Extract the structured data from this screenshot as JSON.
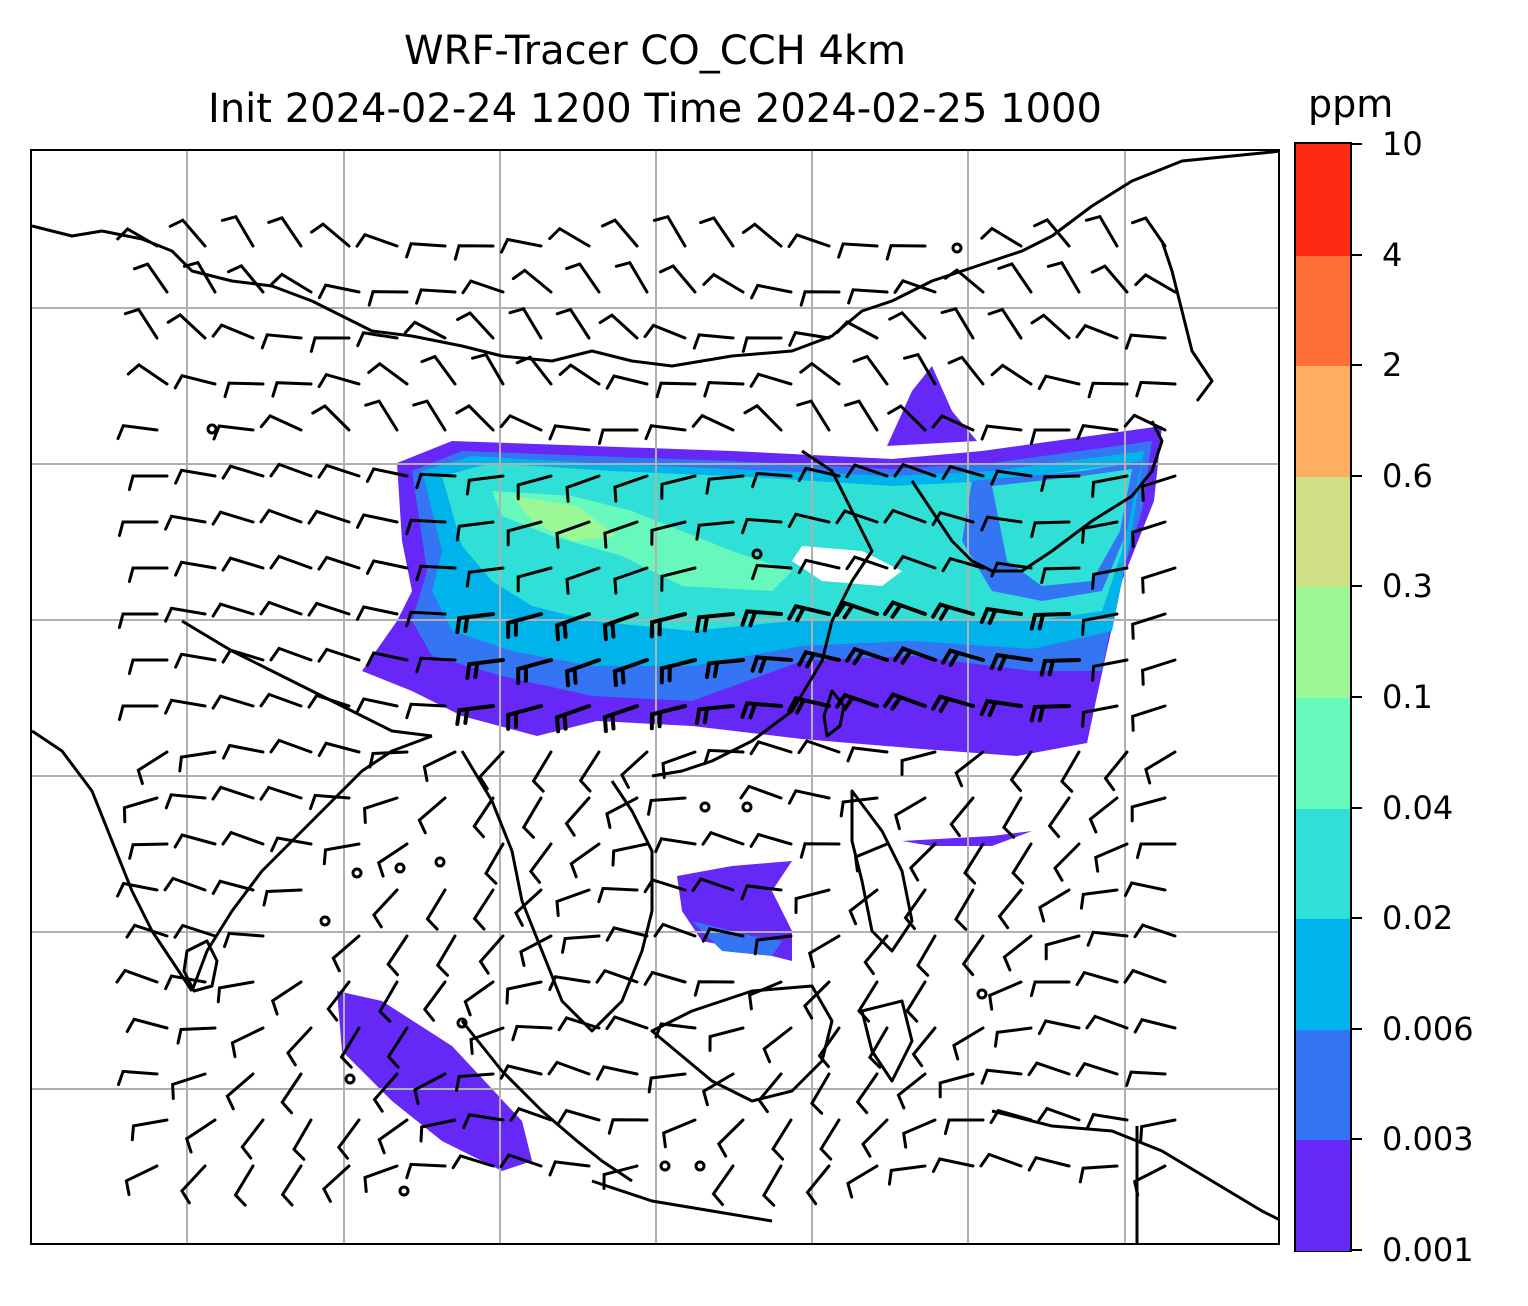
{
  "title": {
    "line1": "WRF-Tracer CO_CCH 4km",
    "line2": "Init 2024-02-24 1200 Time 2024-02-25 1000"
  },
  "colorbar": {
    "unit": "ppm",
    "levels": [
      "0.001",
      "0.003",
      "0.006",
      "0.02",
      "0.04",
      "0.1",
      "0.3",
      "0.6",
      "2",
      "4",
      "10"
    ],
    "colors": [
      "#6528f7",
      "#3375f2",
      "#00b3ea",
      "#30e0d7",
      "#67f8bd",
      "#9cf897",
      "#d0e085",
      "#fdae5f",
      "#fe7035",
      "#fd2a14"
    ]
  },
  "map": {
    "gridlines": true,
    "coastline_color": "#000000",
    "plume_colors": {
      "low": "#6528f7",
      "mid": "#3375f2",
      "high": "#00b3ea",
      "cyan": "#30e0d7",
      "green": "#67f8bd",
      "lime": "#9cf897"
    },
    "wind_barbs": true
  }
}
